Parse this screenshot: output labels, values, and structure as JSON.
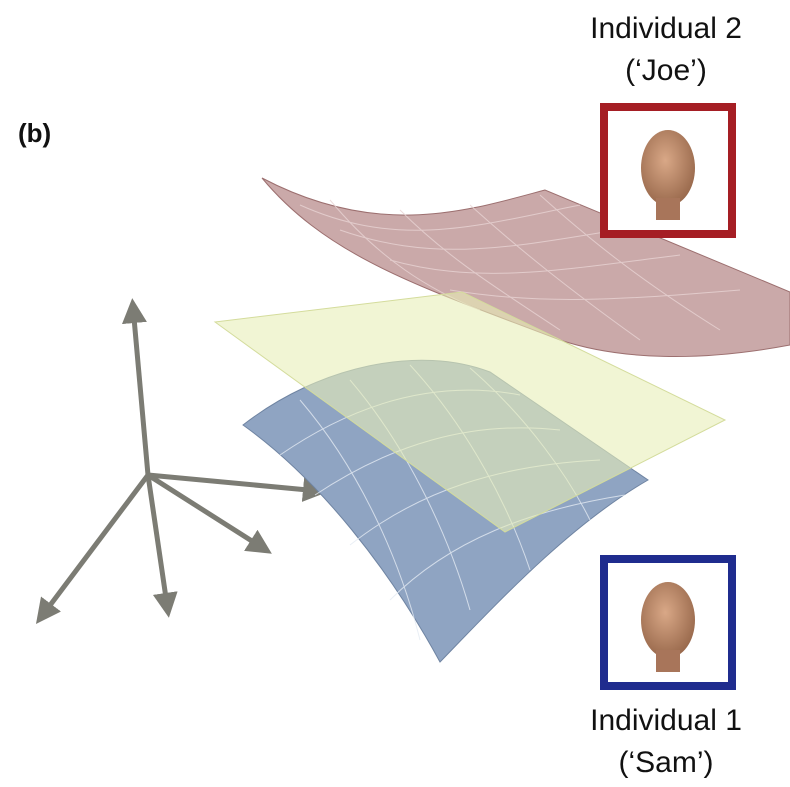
{
  "panel_label": "(b)",
  "individuals": [
    {
      "label": "Individual 2",
      "name": "(‘Joe’)"
    },
    {
      "label": "Individual 1",
      "name": "(‘Sam’)"
    }
  ]
}
